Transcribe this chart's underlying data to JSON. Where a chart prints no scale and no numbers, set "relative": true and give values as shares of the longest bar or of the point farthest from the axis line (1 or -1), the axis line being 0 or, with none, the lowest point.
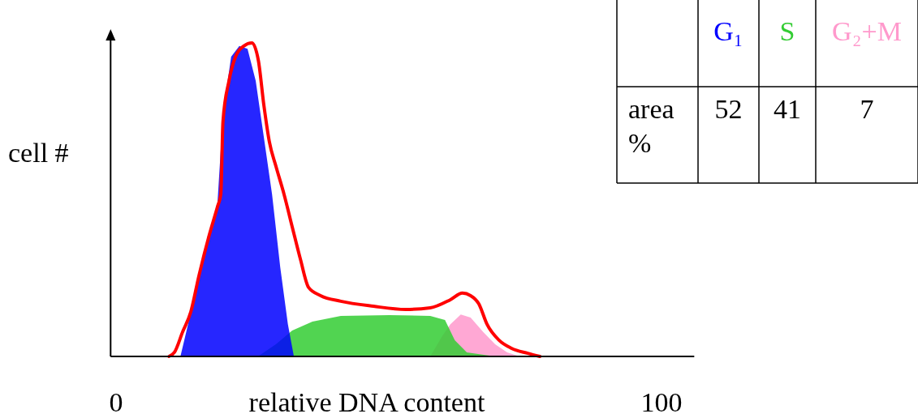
{
  "chart_data": {
    "type": "area",
    "relative": true,
    "xlabel": "relative DNA content",
    "ylabel": "cell #",
    "xlim": [
      -1,
      106
    ],
    "xticks": [
      0,
      100
    ],
    "legend": "top right",
    "annotations": [
      "area %",
      "52",
      "41",
      "7"
    ],
    "series": [
      {
        "name": "G₁",
        "color": "#0000ff",
        "x": [
          11.8,
          13.2,
          15.2,
          17.1,
          18.6,
          19.6,
          21.1,
          22.6,
          24.1,
          25.6,
          27.1,
          28.6,
          30.1,
          31.5,
          32.6
        ],
        "values": [
          0,
          0.103,
          0.258,
          0.388,
          0.491,
          0.775,
          0.956,
          0.99,
          0.981,
          0.879,
          0.698,
          0.517,
          0.284,
          0.103,
          0
        ]
      },
      {
        "name": "S",
        "color": "#33cc33",
        "x": [
          26.0,
          29.3,
          32.3,
          36.0,
          41.2,
          50.1,
          57.6,
          60.3,
          62.1,
          64.3,
          69.5,
          76.9
        ],
        "values": [
          0,
          0.039,
          0.083,
          0.111,
          0.129,
          0.132,
          0.129,
          0.116,
          0.052,
          0.013,
          0,
          0
        ]
      },
      {
        "name": "G₂+M",
        "color": "#ff99cc",
        "x": [
          57.6,
          59.8,
          61.3,
          63.2,
          65.0,
          67.3,
          69.5,
          71.7,
          74.0
        ],
        "values": [
          0,
          0.065,
          0.103,
          0.134,
          0.124,
          0.078,
          0.039,
          0.013,
          0
        ]
      },
      {
        "type": "line",
        "color": "#ff0000",
        "x": [
          9.7,
          10.7,
          12.2,
          13.7,
          15.2,
          17.1,
          18.6,
          19.2,
          19.6,
          20.7,
          21.9,
          23.4,
          24.9,
          26.1,
          27.1,
          28.1,
          29.3,
          30.8,
          32.3,
          33.8,
          35.3,
          37.5,
          41.2,
          47.2,
          53.1,
          57.6,
          61.3,
          63.5,
          65.0,
          66.5,
          68.0,
          70.2,
          72.5,
          75.5,
          77.7
        ],
        "values": [
          0,
          0.013,
          0.078,
          0.142,
          0.258,
          0.388,
          0.478,
          0.517,
          0.749,
          0.879,
          0.956,
          0.99,
          1.0,
          0.943,
          0.801,
          0.685,
          0.607,
          0.517,
          0.413,
          0.31,
          0.22,
          0.194,
          0.176,
          0.16,
          0.15,
          0.155,
          0.181,
          0.202,
          0.194,
          0.168,
          0.103,
          0.052,
          0.026,
          0.01,
          0
        ]
      }
    ]
  }
}
